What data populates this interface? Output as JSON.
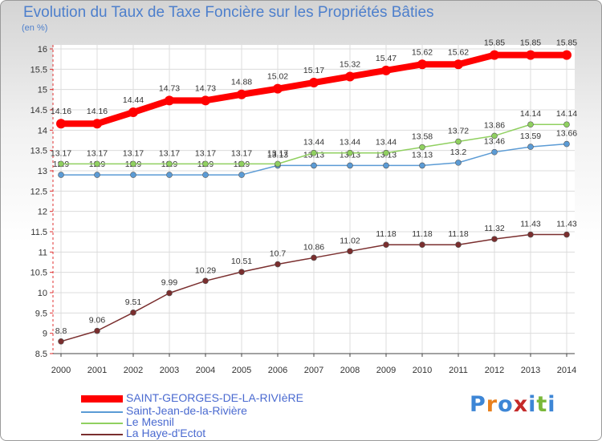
{
  "chart_data": {
    "type": "line",
    "title": "Evolution du Taux de Taxe Foncière sur les Propriétés Bâties",
    "ylabel": "(en %)",
    "xlabel": "",
    "ylim": [
      8.5,
      16
    ],
    "yticks": [
      8.5,
      9,
      9.5,
      10,
      10.5,
      11,
      11.5,
      12,
      12.5,
      13,
      13.5,
      14,
      14.5,
      15,
      15.5,
      16
    ],
    "categories": [
      "2000",
      "2001",
      "2002",
      "2003",
      "2004",
      "2005",
      "2006",
      "2007",
      "2008",
      "2009",
      "2010",
      "2011",
      "2012",
      "2013",
      "2014"
    ],
    "grid": true,
    "series": [
      {
        "name": "SAINT-GEORGES-DE-LA-RIVIèRE",
        "color": "#ff0000",
        "values": [
          14.16,
          14.16,
          14.44,
          14.73,
          14.73,
          14.88,
          15.02,
          15.17,
          15.32,
          15.47,
          15.62,
          15.62,
          15.85,
          15.85,
          15.85
        ],
        "labels": [
          "14.16",
          "14.16",
          "14.44",
          "14.73",
          "14.73",
          "14.88",
          "15.02",
          "15.17",
          "15.32",
          "15.47",
          "15.62",
          "15.62",
          "15.85",
          "15.85",
          "15.85"
        ]
      },
      {
        "name": "Saint-Jean-de-la-Rivière",
        "color": "#5b9bd5",
        "values": [
          12.9,
          12.9,
          12.9,
          12.9,
          12.9,
          12.9,
          13.13,
          13.13,
          13.13,
          13.13,
          13.13,
          13.2,
          13.46,
          13.59,
          13.66
        ],
        "labels": [
          "12.9",
          "12.9",
          "12.9",
          "12.9",
          "12.9",
          "12.9",
          "13.13",
          "13.13",
          "13.13",
          "13.13",
          "13.13",
          "13.2",
          "13.46",
          "13.59",
          "13.66"
        ]
      },
      {
        "name": "Le Mesnil",
        "color": "#90d060",
        "values": [
          13.17,
          13.17,
          13.17,
          13.17,
          13.17,
          13.17,
          13.17,
          13.44,
          13.44,
          13.44,
          13.58,
          13.72,
          13.86,
          14.14,
          14.14
        ],
        "labels": [
          "13.17",
          "13.17",
          "13.17",
          "13.17",
          "13.17",
          "13.17",
          "13.17",
          "13.44",
          "13.44",
          "13.44",
          "13.58",
          "13.72",
          "13.86",
          "14.14",
          "14.14"
        ]
      },
      {
        "name": "La Haye-d'Ectot",
        "color": "#7a2e2e",
        "values": [
          8.8,
          9.06,
          9.51,
          9.99,
          10.29,
          10.51,
          10.7,
          10.86,
          11.02,
          11.18,
          11.18,
          11.18,
          11.32,
          11.43,
          11.43
        ],
        "labels": [
          "8.8",
          "9.06",
          "9.51",
          "9.99",
          "10.29",
          "10.51",
          "10.7",
          "10.86",
          "11.02",
          "11.18",
          "11.18",
          "11.18",
          "11.32",
          "11.43",
          "11.43"
        ]
      }
    ]
  },
  "branding": {
    "logo_letters": [
      "P",
      "r",
      "o",
      "x",
      "i",
      "t",
      "i"
    ],
    "logo_colors": [
      "#3d86d6",
      "#e8801e",
      "#3d86d6",
      "#c42a2a",
      "#3d86d6",
      "#7ab83a",
      "#3d86d6"
    ]
  }
}
